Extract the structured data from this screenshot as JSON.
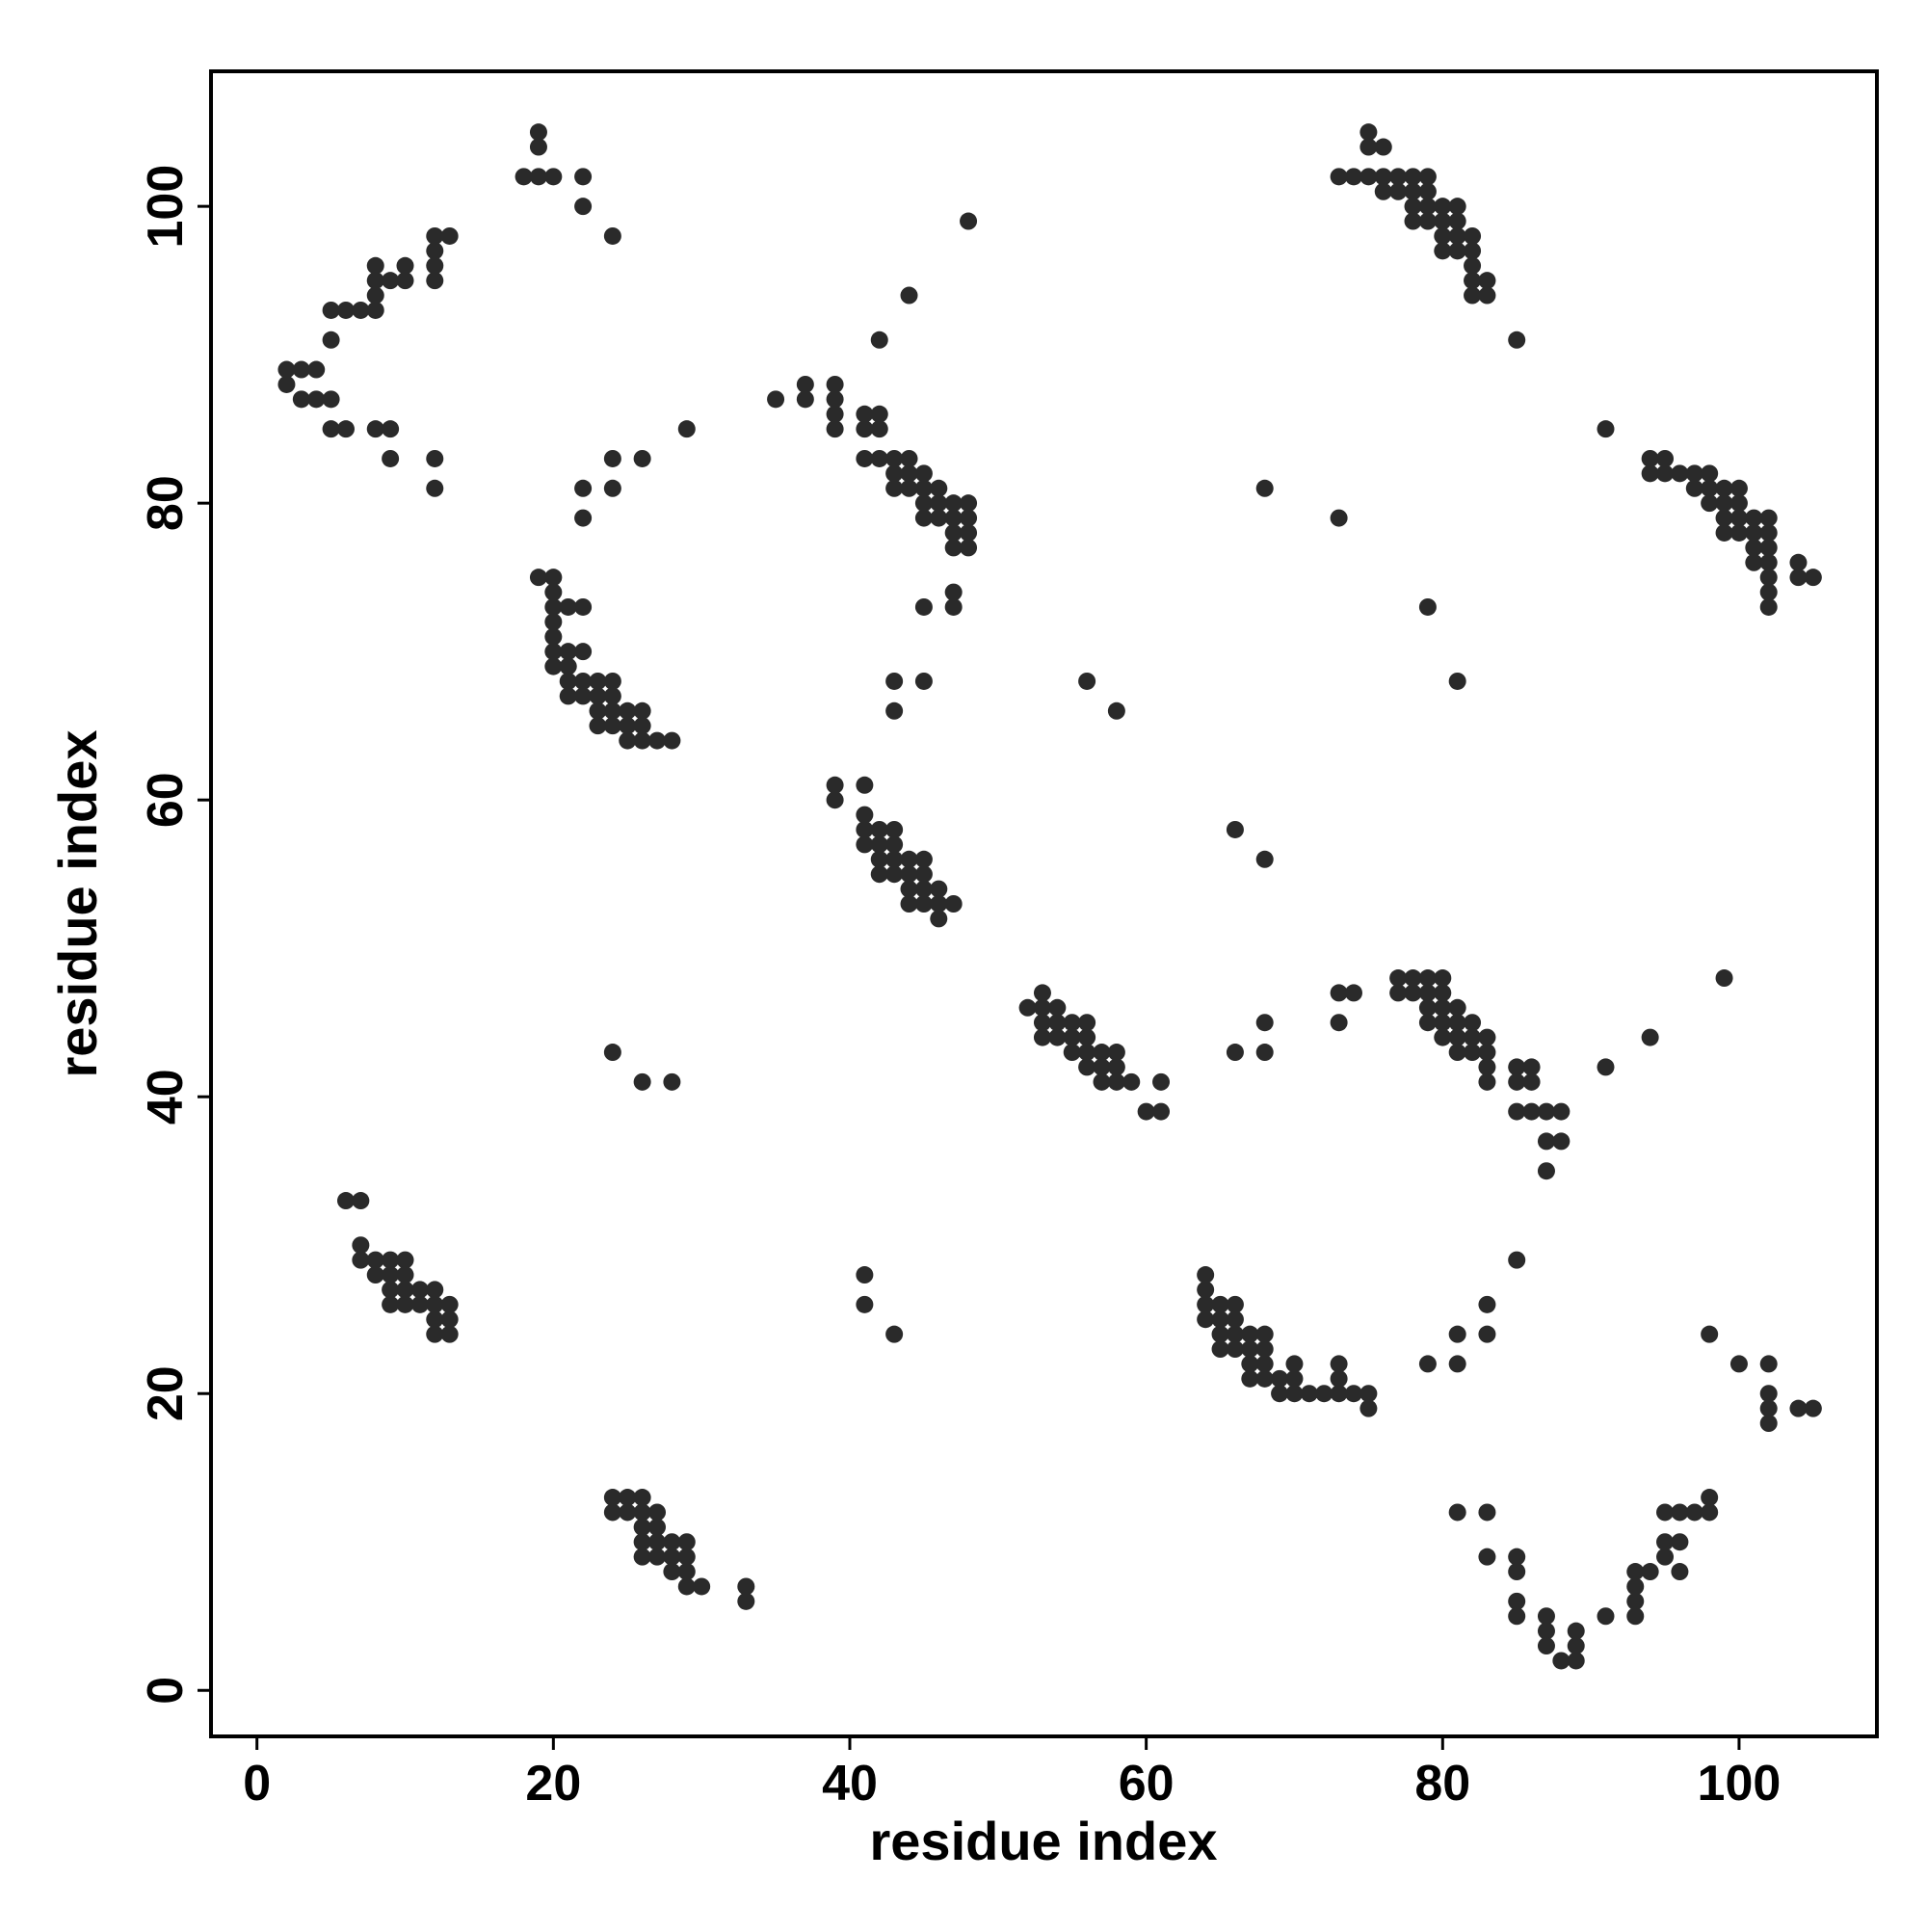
{
  "chart_data": {
    "type": "scatter",
    "xlabel": "residue index",
    "ylabel": "residue index",
    "color": "#2a2a2a",
    "xlim": [
      -3.1,
      109.3
    ],
    "ylim": [
      -3.1,
      109.1
    ],
    "xticks": [
      0,
      20,
      40,
      60,
      80,
      100
    ],
    "yticks": [
      0,
      20,
      40,
      60,
      80,
      100
    ],
    "x": [
      2,
      2,
      3,
      4,
      3,
      4,
      5,
      5,
      6,
      5,
      5,
      6,
      7,
      8,
      8,
      8,
      8,
      9,
      10,
      10,
      12,
      12,
      12,
      12,
      13,
      8,
      9,
      9,
      12,
      12,
      18,
      19,
      20,
      19,
      19,
      22,
      22,
      24,
      22,
      22,
      24,
      24,
      26,
      29,
      19,
      20,
      20,
      20,
      21,
      22,
      20,
      20,
      20,
      21,
      22,
      20,
      21,
      21,
      22,
      21,
      22,
      23,
      24,
      23,
      24,
      23,
      24,
      25,
      26,
      23,
      24,
      25,
      26,
      25,
      26,
      27,
      28,
      35,
      37,
      37,
      39,
      39,
      39,
      39,
      41,
      42,
      41,
      42,
      41,
      42,
      43,
      44,
      43,
      44,
      43,
      44,
      45,
      45,
      46,
      45,
      46,
      47,
      48,
      45,
      46,
      47,
      48,
      47,
      48,
      47,
      48,
      47,
      47,
      45,
      42,
      44,
      48,
      43,
      43,
      45,
      56,
      58,
      39,
      39,
      41,
      41,
      41,
      42,
      43,
      41,
      42,
      43,
      42,
      43,
      44,
      45,
      42,
      43,
      44,
      45,
      44,
      45,
      46,
      44,
      45,
      46,
      47,
      46,
      66,
      68,
      52,
      53,
      54,
      53,
      53,
      54,
      55,
      56,
      53,
      54,
      55,
      56,
      55,
      56,
      57,
      58,
      56,
      57,
      58,
      57,
      58,
      59,
      61,
      60,
      61,
      66,
      68,
      68,
      73,
      74,
      73,
      77,
      78,
      79,
      80,
      77,
      78,
      79,
      80,
      79,
      80,
      81,
      79,
      80,
      81,
      82,
      80,
      81,
      82,
      83,
      81,
      82,
      83,
      83,
      83,
      85,
      86,
      85,
      86,
      85,
      86,
      87,
      88,
      87,
      88,
      87,
      91,
      94,
      99,
      24,
      26,
      28,
      6,
      7,
      7,
      7,
      8,
      9,
      10,
      8,
      9,
      10,
      9,
      10,
      11,
      12,
      9,
      10,
      11,
      12,
      13,
      12,
      13,
      12,
      13,
      41,
      41,
      43,
      64,
      64,
      64,
      65,
      66,
      64,
      65,
      66,
      65,
      66,
      67,
      68,
      65,
      66,
      67,
      68,
      67,
      68,
      70,
      67,
      68,
      69,
      70,
      69,
      70,
      71,
      72,
      73,
      74,
      75,
      73,
      73,
      75,
      79,
      81,
      81,
      83,
      83,
      85,
      98,
      100,
      102,
      102,
      102,
      102,
      104,
      105,
      24,
      25,
      26,
      24,
      25,
      26,
      27,
      26,
      27,
      26,
      27,
      28,
      29,
      26,
      27,
      28,
      29,
      28,
      29,
      29,
      30,
      33,
      33,
      81,
      83,
      83,
      85,
      85,
      85,
      85,
      87,
      87,
      87,
      88,
      89,
      89,
      89,
      91,
      93,
      93,
      93,
      93,
      94,
      95,
      95,
      96,
      95,
      96,
      97,
      98,
      98,
      96,
      73,
      74,
      75,
      76,
      75,
      75,
      76,
      76,
      77,
      77,
      78,
      78,
      78,
      79,
      79,
      79,
      78,
      79,
      80,
      81,
      80,
      81,
      80,
      81,
      80,
      81,
      82,
      82,
      82,
      82,
      83,
      82,
      83,
      85,
      91,
      68,
      73,
      79,
      81,
      94,
      95,
      94,
      95,
      96,
      97,
      97,
      98,
      98,
      99,
      100,
      98,
      99,
      100,
      99,
      100,
      101,
      102,
      99,
      100,
      101,
      102,
      101,
      102,
      101,
      102,
      102,
      102,
      102,
      104,
      104,
      105
    ],
    "values": [
      88,
      89,
      89,
      89,
      87,
      87,
      87,
      85,
      85,
      91,
      93,
      93,
      93,
      93,
      94,
      95,
      96,
      95,
      95,
      96,
      95,
      96,
      97,
      98,
      98,
      85,
      85,
      83,
      83,
      81,
      102,
      102,
      102,
      104,
      105,
      102,
      100,
      98,
      81,
      79,
      83,
      81,
      83,
      85,
      75,
      75,
      74,
      73,
      73,
      73,
      72,
      71,
      70,
      70,
      70,
      69,
      69,
      68,
      68,
      67,
      67,
      68,
      68,
      67,
      67,
      66,
      66,
      66,
      66,
      65,
      65,
      65,
      65,
      64,
      64,
      64,
      64,
      87,
      88,
      87,
      88,
      87,
      86,
      85,
      86,
      86,
      85,
      85,
      83,
      83,
      83,
      83,
      82,
      82,
      81,
      81,
      82,
      81,
      81,
      80,
      80,
      80,
      80,
      79,
      79,
      79,
      79,
      78,
      78,
      77,
      77,
      74,
      73,
      73,
      91,
      94,
      99,
      68,
      66,
      68,
      68,
      66,
      61,
      60,
      61,
      59,
      58,
      58,
      58,
      57,
      57,
      57,
      56,
      56,
      56,
      56,
      55,
      55,
      55,
      55,
      54,
      54,
      54,
      53,
      53,
      53,
      53,
      52,
      58,
      56,
      46,
      46,
      46,
      47,
      45,
      45,
      45,
      45,
      44,
      44,
      44,
      44,
      43,
      43,
      43,
      43,
      42,
      42,
      42,
      41,
      41,
      41,
      41,
      39,
      39,
      43,
      45,
      43,
      47,
      47,
      45,
      48,
      48,
      48,
      48,
      47,
      47,
      47,
      47,
      46,
      46,
      46,
      45,
      45,
      45,
      45,
      44,
      44,
      44,
      44,
      43,
      43,
      43,
      42,
      41,
      42,
      42,
      41,
      41,
      39,
      39,
      39,
      39,
      37,
      37,
      35,
      42,
      44,
      48,
      43,
      41,
      41,
      33,
      33,
      30,
      29,
      29,
      29,
      29,
      28,
      28,
      28,
      27,
      27,
      27,
      27,
      26,
      26,
      26,
      26,
      26,
      25,
      25,
      24,
      24,
      28,
      26,
      24,
      28,
      27,
      26,
      26,
      26,
      25,
      25,
      25,
      24,
      24,
      24,
      24,
      23,
      23,
      23,
      23,
      22,
      22,
      22,
      21,
      21,
      21,
      21,
      20,
      20,
      20,
      20,
      20,
      20,
      20,
      22,
      21,
      19,
      22,
      24,
      22,
      26,
      24,
      29,
      24,
      22,
      22,
      20,
      19,
      18,
      19,
      19,
      13,
      13,
      13,
      12,
      12,
      12,
      12,
      11,
      11,
      10,
      10,
      10,
      10,
      9,
      9,
      9,
      9,
      8,
      8,
      7,
      7,
      7,
      6,
      12,
      12,
      9,
      9,
      8,
      6,
      5,
      5,
      4,
      3,
      2,
      2,
      3,
      4,
      5,
      5,
      6,
      7,
      8,
      8,
      9,
      10,
      10,
      12,
      12,
      12,
      12,
      13,
      8,
      102,
      102,
      102,
      102,
      104,
      105,
      104,
      101,
      102,
      101,
      102,
      101,
      100,
      102,
      101,
      100,
      99,
      99,
      100,
      100,
      99,
      99,
      98,
      98,
      97,
      97,
      98,
      97,
      96,
      95,
      95,
      94,
      94,
      91,
      85,
      81,
      79,
      73,
      68,
      83,
      83,
      82,
      82,
      82,
      82,
      81,
      82,
      81,
      81,
      81,
      80,
      80,
      80,
      79,
      79,
      79,
      79,
      78,
      78,
      78,
      78,
      77,
      77,
      76,
      76,
      75,
      74,
      73,
      76,
      75,
      75
    ]
  }
}
